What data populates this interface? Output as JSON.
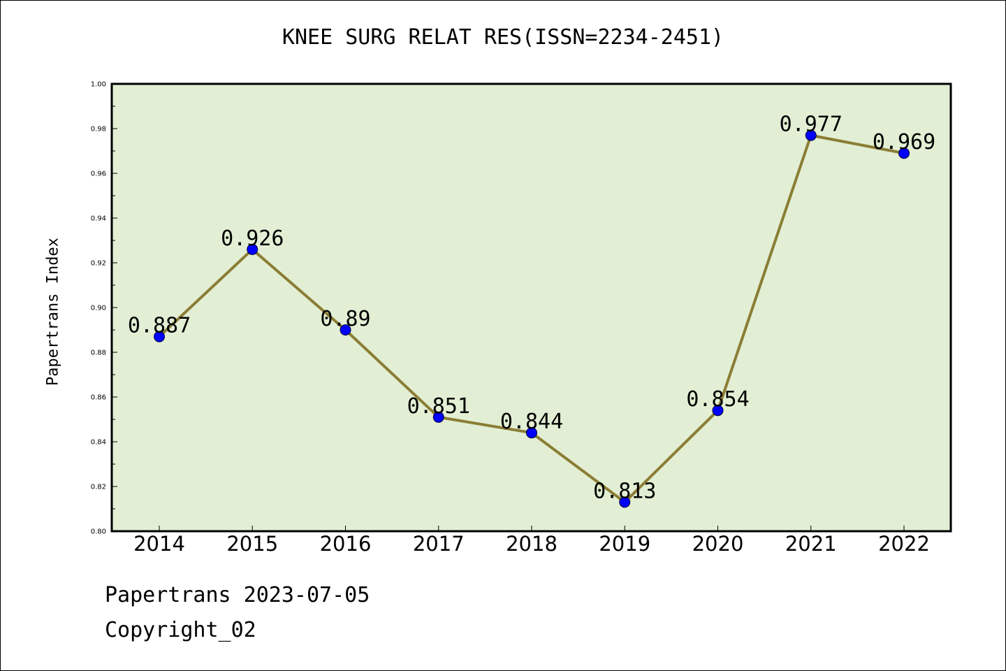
{
  "chart_data": {
    "type": "line",
    "title": "KNEE SURG RELAT RES(ISSN=2234-2451)",
    "ylabel": "Papertrans Index",
    "xlabel": "",
    "categories": [
      "2014",
      "2015",
      "2016",
      "2017",
      "2018",
      "2019",
      "2020",
      "2021",
      "2022"
    ],
    "series": [
      {
        "values": [
          0.887,
          0.926,
          0.89,
          0.851,
          0.844,
          0.813,
          0.854,
          0.977,
          0.969
        ],
        "data_labels": [
          "0.887",
          "0.926",
          "0.89",
          "0.851",
          "0.844",
          "0.813",
          "0.854",
          "0.977",
          "0.969"
        ],
        "line_color": "#8b7d35",
        "marker_color": "#0000ff"
      }
    ],
    "ylim": [
      0.8,
      1.0
    ],
    "yticks": [
      "0.80",
      "0.82",
      "0.84",
      "0.86",
      "0.88",
      "0.90",
      "0.92",
      "0.94",
      "0.96",
      "0.98",
      "1.00"
    ],
    "plot_background": "#e2efd4",
    "grid": false
  },
  "footer": {
    "line1": "Papertrans 2023-07-05",
    "line2": "Copyright_02"
  }
}
